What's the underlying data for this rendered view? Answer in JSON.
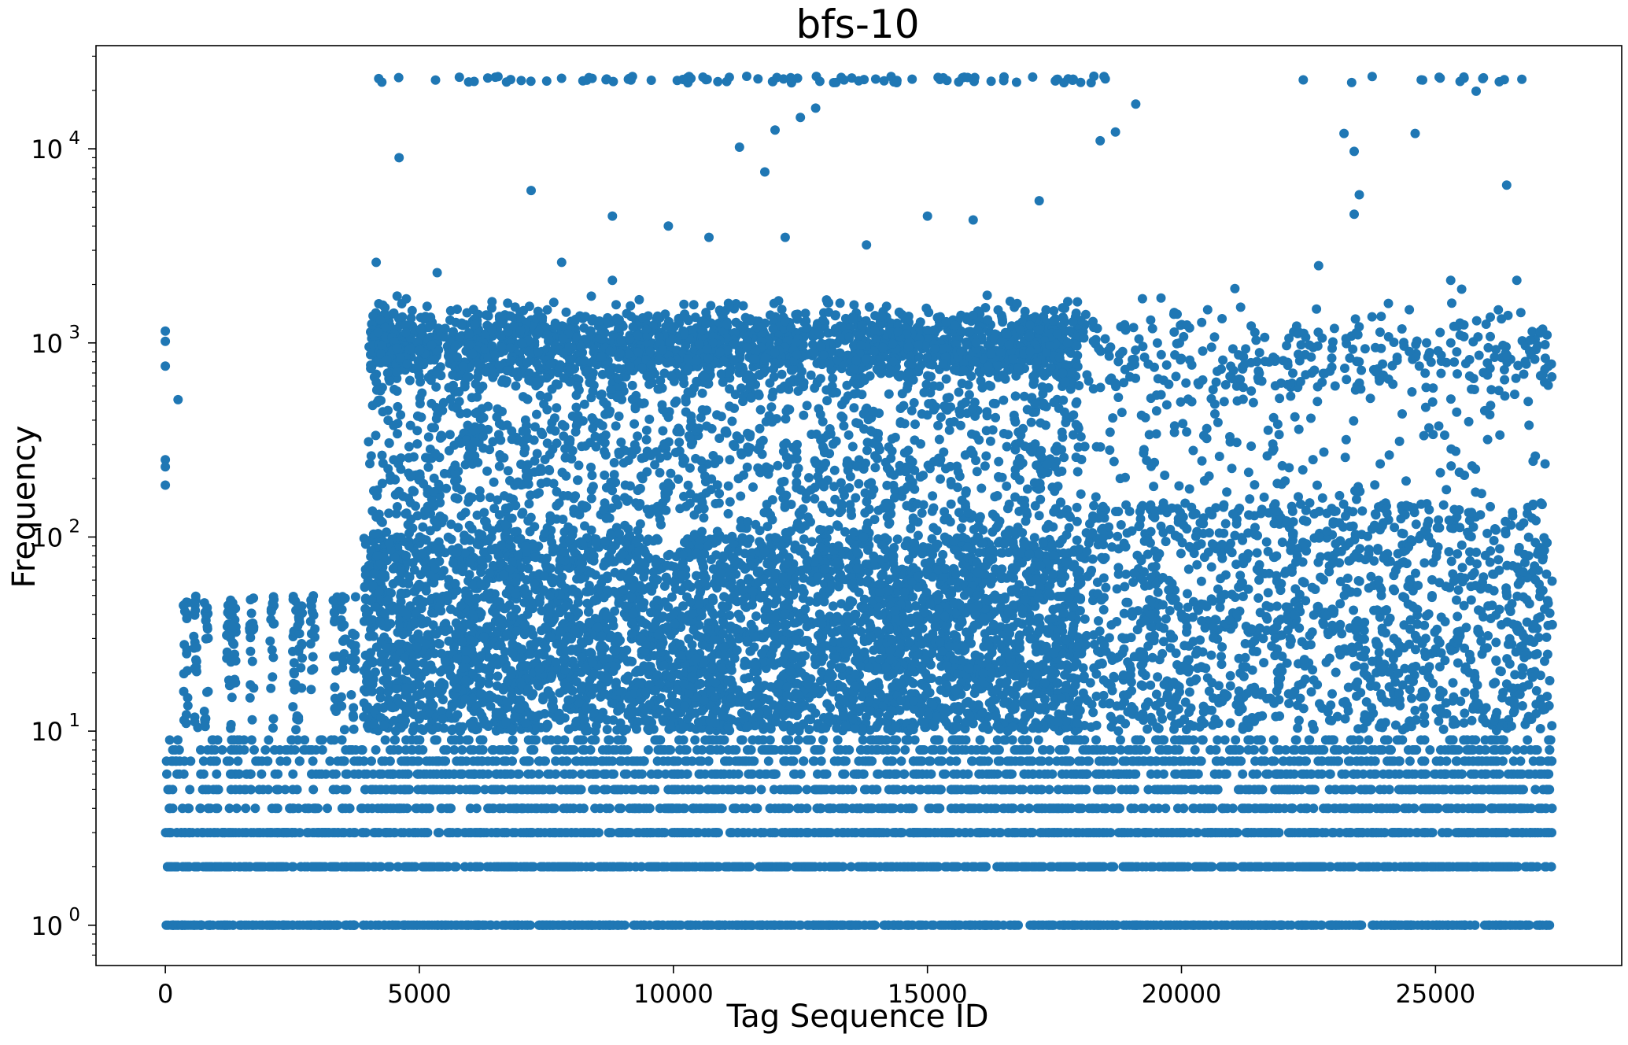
{
  "chart_data": {
    "type": "scatter",
    "title": "bfs-10",
    "xlabel": "Tag Sequence ID",
    "ylabel": "Frequency",
    "xscale": "linear",
    "yscale": "log",
    "xlim": [
      -1365,
      28665
    ],
    "ylim": [
      0.62,
      34000
    ],
    "xticks": [
      0,
      5000,
      10000,
      15000,
      20000,
      25000
    ],
    "xtick_labels": [
      "0",
      "5000",
      "10000",
      "15000",
      "20000",
      "25000"
    ],
    "yticks": [
      1,
      10,
      100,
      1000,
      10000
    ],
    "ytick_labels": [
      {
        "base": "10",
        "exp": "0"
      },
      {
        "base": "10",
        "exp": "1"
      },
      {
        "base": "10",
        "exp": "2"
      },
      {
        "base": "10",
        "exp": "3"
      },
      {
        "base": "10",
        "exp": "4"
      }
    ],
    "marker_color": "#1f77b4",
    "grid": false,
    "legend": "none",
    "x_range": [
      0,
      27300
    ],
    "y_range": [
      1,
      24000
    ],
    "description_points": {
      "isolated_low_x": [
        {
          "x": 0,
          "y": 1150
        },
        {
          "x": 0,
          "y": 1020
        },
        {
          "x": 0,
          "y": 760
        },
        {
          "x": 250,
          "y": 510
        },
        {
          "x": 0,
          "y": 250
        },
        {
          "x": 0,
          "y": 230
        },
        {
          "x": 0,
          "y": 185
        }
      ],
      "upper_outliers": [
        {
          "x": 4200,
          "y": 23000
        },
        {
          "x": 4600,
          "y": 9000
        },
        {
          "x": 4150,
          "y": 2600
        },
        {
          "x": 5350,
          "y": 2300
        },
        {
          "x": 7200,
          "y": 6100
        },
        {
          "x": 7800,
          "y": 2600
        },
        {
          "x": 8800,
          "y": 4500
        },
        {
          "x": 8800,
          "y": 2100
        },
        {
          "x": 9900,
          "y": 4000
        },
        {
          "x": 10700,
          "y": 3500
        },
        {
          "x": 11300,
          "y": 10200
        },
        {
          "x": 11800,
          "y": 7600
        },
        {
          "x": 12000,
          "y": 12500
        },
        {
          "x": 12200,
          "y": 3500
        },
        {
          "x": 12500,
          "y": 14500
        },
        {
          "x": 12800,
          "y": 16200
        },
        {
          "x": 13800,
          "y": 3200
        },
        {
          "x": 15000,
          "y": 4500
        },
        {
          "x": 15900,
          "y": 4300
        },
        {
          "x": 17200,
          "y": 5400
        },
        {
          "x": 18400,
          "y": 11000
        },
        {
          "x": 18700,
          "y": 12200
        },
        {
          "x": 19100,
          "y": 17000
        },
        {
          "x": 22700,
          "y": 2500
        },
        {
          "x": 23200,
          "y": 12000
        },
        {
          "x": 23400,
          "y": 9700
        },
        {
          "x": 23400,
          "y": 4600
        },
        {
          "x": 23500,
          "y": 5800
        },
        {
          "x": 24600,
          "y": 12000
        },
        {
          "x": 25300,
          "y": 2100
        },
        {
          "x": 25800,
          "y": 19800
        },
        {
          "x": 26400,
          "y": 6500
        },
        {
          "x": 26600,
          "y": 2100
        },
        {
          "x": 26700,
          "y": 22800
        }
      ],
      "top_row_y": 23000
    }
  }
}
